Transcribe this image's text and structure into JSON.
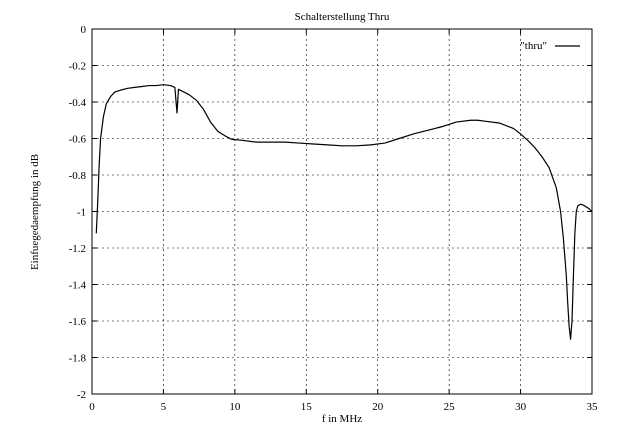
{
  "chart_data": {
    "type": "line",
    "title": "Schalterstellung Thru",
    "xlabel": "f in MHz",
    "ylabel": "Einfuegedaempfung in dB",
    "xlim": [
      0,
      35
    ],
    "ylim": [
      -2,
      0
    ],
    "xticks": [
      0,
      5,
      10,
      15,
      20,
      25,
      30,
      35
    ],
    "yticks": [
      0,
      -0.2,
      -0.4,
      -0.6,
      -0.8,
      -1,
      -1.2,
      -1.4,
      -1.6,
      -1.8,
      -2
    ],
    "xtick_labels": [
      "0",
      "5",
      "10",
      "15",
      "20",
      "25",
      "30",
      "35"
    ],
    "ytick_labels": [
      "0",
      "-0.2",
      "-0.4",
      "-0.6",
      "-0.8",
      "-1",
      "-1.2",
      "-1.4",
      "-1.6",
      "-1.8",
      "-2"
    ],
    "grid": true,
    "legend": {
      "position": "top-right"
    },
    "series": [
      {
        "name": "\"thru\"",
        "color": "#000000",
        "x": [
          0.3,
          0.4,
          0.5,
          0.6,
          0.8,
          1.0,
          1.3,
          1.6,
          2.0,
          2.5,
          3.0,
          3.5,
          4.0,
          4.5,
          5.0,
          5.5,
          5.8,
          5.95,
          6.05,
          6.3,
          6.8,
          7.3,
          7.8,
          8.3,
          8.8,
          9.3,
          9.8,
          10.5,
          11.5,
          12.5,
          13.5,
          14.5,
          15.5,
          16.5,
          17.5,
          18.5,
          19.5,
          20.5,
          21.5,
          22.5,
          23.5,
          24.5,
          25.5,
          26.5,
          27.0,
          27.5,
          28.5,
          29.5,
          30.0,
          30.5,
          31.0,
          31.5,
          32.0,
          32.5,
          32.8,
          33.0,
          33.2,
          33.3,
          33.4,
          33.5,
          33.6,
          33.7,
          33.8,
          33.9,
          34.0,
          34.2,
          34.4,
          34.6,
          34.8,
          35.0
        ],
        "values": [
          -1.12,
          -0.95,
          -0.75,
          -0.6,
          -0.48,
          -0.41,
          -0.37,
          -0.345,
          -0.335,
          -0.325,
          -0.32,
          -0.315,
          -0.31,
          -0.31,
          -0.305,
          -0.31,
          -0.32,
          -0.46,
          -0.33,
          -0.34,
          -0.36,
          -0.39,
          -0.44,
          -0.51,
          -0.56,
          -0.585,
          -0.605,
          -0.61,
          -0.62,
          -0.62,
          -0.62,
          -0.625,
          -0.63,
          -0.635,
          -0.64,
          -0.64,
          -0.635,
          -0.625,
          -0.6,
          -0.575,
          -0.555,
          -0.535,
          -0.51,
          -0.5,
          -0.5,
          -0.505,
          -0.515,
          -0.545,
          -0.575,
          -0.61,
          -0.65,
          -0.7,
          -0.76,
          -0.87,
          -1.0,
          -1.15,
          -1.35,
          -1.5,
          -1.63,
          -1.7,
          -1.6,
          -1.35,
          -1.12,
          -1.0,
          -0.97,
          -0.96,
          -0.965,
          -0.975,
          -0.985,
          -1.0
        ]
      }
    ]
  }
}
